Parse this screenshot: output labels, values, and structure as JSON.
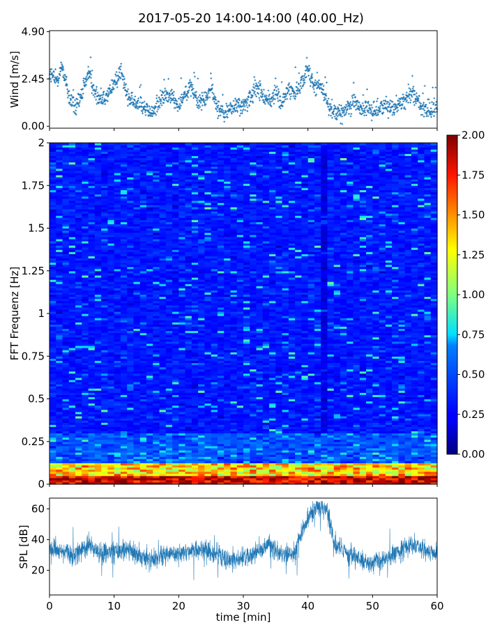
{
  "figure": {
    "title": "2017-05-20 14:00-14:00 (40.00_Hz)"
  },
  "chart_data": [
    {
      "type": "scatter",
      "id": "wind",
      "ylabel": "Wind [m/s]",
      "xlim": [
        0,
        60
      ],
      "ylim": [
        -0.1,
        4.95
      ],
      "yticks": [
        0.0,
        2.45,
        4.9
      ],
      "ytick_labels": [
        "0.00",
        "2.45",
        "4.90"
      ],
      "marker": "+",
      "color": "#1f77b4",
      "series": [
        {
          "x": [
            0,
            1,
            2,
            3,
            4,
            5,
            6,
            7,
            8,
            9,
            10,
            11,
            12,
            13,
            14,
            15,
            16,
            17,
            18,
            19,
            20,
            21,
            22,
            23,
            24,
            25,
            26,
            27,
            28,
            29,
            30,
            31,
            32,
            33,
            34,
            35,
            36,
            37,
            38,
            39,
            40,
            41,
            42,
            43,
            44,
            45,
            46,
            47,
            48,
            49,
            50,
            51,
            52,
            53,
            54,
            55,
            56,
            57,
            58,
            59,
            60
          ],
          "y": [
            2.8,
            2.3,
            3.1,
            1.5,
            0.9,
            1.6,
            2.8,
            1.7,
            1.4,
            1.6,
            2.2,
            2.9,
            1.6,
            1.2,
            1.3,
            0.8,
            0.7,
            1.3,
            1.6,
            1.5,
            1.1,
            1.8,
            2.0,
            1.2,
            1.4,
            1.9,
            1.0,
            0.6,
            0.9,
            1.1,
            1.0,
            1.4,
            2.0,
            1.6,
            1.2,
            1.8,
            1.1,
            2.0,
            1.7,
            2.3,
            3.0,
            2.0,
            2.1,
            1.2,
            0.8,
            0.6,
            0.9,
            1.3,
            1.0,
            0.9,
            0.8,
            0.9,
            1.1,
            1.0,
            1.1,
            1.3,
            1.8,
            1.4,
            0.7,
            0.8,
            0.9
          ]
        }
      ]
    },
    {
      "type": "heatmap",
      "id": "spectrogram",
      "ylabel": "FFT Frequenz [Hz]",
      "xlim": [
        0,
        60
      ],
      "ylim": [
        0,
        2
      ],
      "yticks": [
        0,
        0.25,
        0.5,
        0.75,
        1,
        1.25,
        1.5,
        1.75,
        2
      ],
      "ytick_labels": [
        "0",
        "0.25",
        "0.5",
        "0.75",
        "1",
        "1.25",
        "1.5",
        "1.75",
        "2"
      ],
      "colormap": "jet",
      "clim": [
        0,
        2
      ],
      "colorbar_ticks": [
        0.0,
        0.25,
        0.5,
        0.75,
        1.0,
        1.25,
        1.5,
        1.75,
        2.0
      ],
      "colorbar_tick_labels": [
        "0.00",
        "0.25",
        "0.50",
        "0.75",
        "1.00",
        "1.25",
        "1.50",
        "1.75",
        "2.00"
      ]
    },
    {
      "type": "line",
      "id": "spl",
      "ylabel": "SPL [dB]",
      "xlabel": "time [min]",
      "xlim": [
        0,
        60
      ],
      "ylim": [
        4,
        67
      ],
      "yticks": [
        20,
        40,
        60
      ],
      "ytick_labels": [
        "20",
        "40",
        "60"
      ],
      "xticks": [
        0,
        10,
        20,
        30,
        40,
        50,
        60
      ],
      "xtick_labels": [
        "0",
        "10",
        "20",
        "30",
        "40",
        "50",
        "60"
      ],
      "color": "#1f77b4",
      "series": [
        {
          "x": [
            0,
            2,
            4,
            6,
            8,
            10,
            12,
            14,
            16,
            18,
            20,
            22,
            24,
            26,
            28,
            30,
            32,
            34,
            36,
            38,
            39,
            40,
            41,
            42,
            43,
            44,
            46,
            48,
            50,
            52,
            54,
            56,
            58,
            60
          ],
          "y": [
            35,
            32,
            30,
            36,
            30,
            33,
            34,
            28,
            27,
            30,
            31,
            33,
            34,
            30,
            26,
            28,
            31,
            37,
            30,
            31,
            45,
            55,
            60,
            61,
            59,
            38,
            32,
            27,
            24,
            28,
            32,
            37,
            34,
            30
          ]
        }
      ]
    }
  ]
}
